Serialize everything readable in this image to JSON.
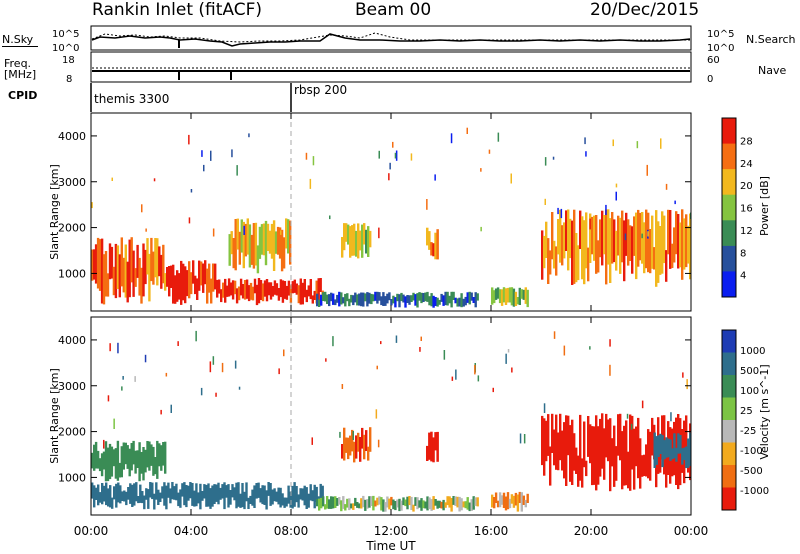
{
  "header": {
    "title": "Rankin Inlet (fitACF)",
    "beam": "Beam 00",
    "date": "20/Dec/2015"
  },
  "side_labels": {
    "nsky": "N.Sky",
    "nsearch": "N.Search",
    "freq_line1": "Freq.",
    "freq_line2": "[MHz]",
    "nave": "Nave",
    "cpid": "CPID"
  },
  "summary_axes": {
    "nsky_ticks": [
      "10^5",
      "10^0"
    ],
    "nsearch_ticks": [
      "10^5",
      "10^0"
    ],
    "freq_ticks": [
      "18",
      "8"
    ],
    "nave_ticks": [
      "60",
      "0"
    ]
  },
  "cpid_segments": [
    {
      "label": "themis 3300",
      "start_hour": 0
    },
    {
      "label": "rbsp 200",
      "start_hour": 8
    }
  ],
  "x_axis": {
    "label": "Time UT",
    "ticks": [
      "00:00",
      "04:00",
      "08:00",
      "12:00",
      "16:00",
      "20:00",
      "00:00"
    ]
  },
  "power_panel": {
    "ylabel": "Slant Range [km]",
    "yticks": [
      "1000",
      "2000",
      "3000",
      "4000"
    ],
    "colorbar_label": "Power [dB]",
    "colorbar_ticks": [
      "4",
      "8",
      "12",
      "16",
      "20",
      "24",
      "28"
    ],
    "colors": [
      "#0a1ef0",
      "#27509c",
      "#3a8c55",
      "#85c440",
      "#f2b81e",
      "#f56e12",
      "#e81b0c"
    ]
  },
  "velocity_panel": {
    "ylabel": "Slant Range [km]",
    "yticks": [
      "1000",
      "2000",
      "3000",
      "4000"
    ],
    "colorbar_label": "Velocity [m s^-1]",
    "colorbar_ticks": [
      "1000",
      "500",
      "100",
      "25",
      "-25",
      "-100",
      "-500",
      "-1000"
    ],
    "colors": [
      "#1e3cb4",
      "#2e6e8c",
      "#3a8c55",
      "#7cc444",
      "#b8b8b8",
      "#f2aa1e",
      "#f06e12",
      "#e81b0c"
    ]
  },
  "chart_data": [
    {
      "type": "heatmap",
      "title": "Power [dB]",
      "xlabel": "Time UT",
      "ylabel": "Slant Range [km]",
      "xlim": [
        0,
        24
      ],
      "ylim": [
        180,
        4500
      ],
      "zlim": [
        0,
        30
      ],
      "regions": [
        {
          "t0": 0.0,
          "t1": 3.0,
          "r0": 300,
          "r1": 1800,
          "value": 25
        },
        {
          "t0": 3.0,
          "t1": 5.0,
          "r0": 300,
          "r1": 1300,
          "value": 27
        },
        {
          "t0": 5.0,
          "t1": 9.3,
          "r0": 300,
          "r1": 900,
          "value": 29
        },
        {
          "t0": 5.5,
          "t1": 8.0,
          "r0": 1000,
          "r1": 2200,
          "value": 20
        },
        {
          "t0": 9.0,
          "t1": 15.5,
          "r0": 250,
          "r1": 600,
          "value": 8
        },
        {
          "t0": 10.0,
          "t1": 11.2,
          "r0": 1300,
          "r1": 2100,
          "value": 17
        },
        {
          "t0": 13.4,
          "t1": 13.9,
          "r0": 1300,
          "r1": 2000,
          "value": 24
        },
        {
          "t0": 16.0,
          "t1": 17.5,
          "r0": 250,
          "r1": 700,
          "value": 15
        },
        {
          "t0": 18.0,
          "t1": 24.0,
          "r0": 700,
          "r1": 2400,
          "value": 23
        }
      ]
    },
    {
      "type": "heatmap",
      "title": "Velocity [m s^-1]",
      "xlabel": "Time UT",
      "ylabel": "Slant Range [km]",
      "xlim": [
        0,
        24
      ],
      "ylim": [
        180,
        4500
      ],
      "zlim": [
        -1000,
        1000
      ],
      "regions": [
        {
          "t0": 0.0,
          "t1": 9.3,
          "r0": 300,
          "r1": 900,
          "value": 400
        },
        {
          "t0": 0.0,
          "t1": 3.0,
          "r0": 900,
          "r1": 1800,
          "value": 200
        },
        {
          "t0": 9.0,
          "t1": 15.5,
          "r0": 250,
          "r1": 600,
          "value": 30
        },
        {
          "t0": 10.0,
          "t1": 11.2,
          "r0": 1300,
          "r1": 2100,
          "value": -300
        },
        {
          "t0": 13.4,
          "t1": 13.9,
          "r0": 1300,
          "r1": 2000,
          "value": -400
        },
        {
          "t0": 16.0,
          "t1": 17.5,
          "r0": 250,
          "r1": 700,
          "value": -80
        },
        {
          "t0": 18.0,
          "t1": 24.0,
          "r0": 700,
          "r1": 2400,
          "value": -500
        },
        {
          "t0": 22.5,
          "t1": 24.0,
          "r0": 1200,
          "r1": 2000,
          "value": 500
        }
      ]
    }
  ]
}
